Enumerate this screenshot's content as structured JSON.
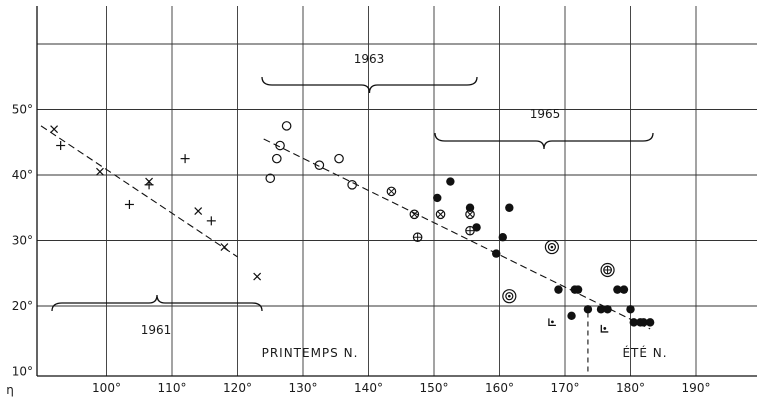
{
  "chart_data": {
    "type": "scatter",
    "title": "",
    "xlabel": "η",
    "ylabel": "",
    "xlim": [
      90,
      195
    ],
    "ylim": [
      10,
      55
    ],
    "grid": true,
    "x_ticks": [
      "100°",
      "110°",
      "120°",
      "130°",
      "140°",
      "150°",
      "160°",
      "170°",
      "180°",
      "190°"
    ],
    "y_ticks": [
      "10°",
      "20°",
      "30°",
      "40°",
      "50°"
    ],
    "annotations": {
      "year_1961": "1961",
      "year_1963": "1963",
      "year_1965": "1965",
      "season_spring": "PRINTEMPS N.",
      "season_summer": "ÉTÉ N."
    },
    "trend_lines": [
      {
        "group": "1961",
        "x": [
          90,
          120
        ],
        "y": [
          47.5,
          27.5
        ]
      },
      {
        "group": "1963_1965",
        "x": [
          124,
          183
        ],
        "y": [
          45.5,
          16.5
        ]
      }
    ],
    "season_divider_x": 173.5,
    "series": [
      {
        "marker": "x",
        "points": [
          [
            92,
            47
          ],
          [
            99,
            40.5
          ],
          [
            106.5,
            39
          ],
          [
            114,
            34.5
          ],
          [
            118,
            29
          ],
          [
            123,
            24.5
          ]
        ]
      },
      {
        "marker": "plus",
        "points": [
          [
            93,
            44.5
          ],
          [
            103.5,
            35.5
          ],
          [
            106.5,
            38.5
          ],
          [
            112,
            42.5
          ],
          [
            116,
            33
          ]
        ]
      },
      {
        "marker": "open-circle",
        "points": [
          [
            125,
            39.5
          ],
          [
            126,
            42.5
          ],
          [
            126.5,
            44.5
          ],
          [
            127.5,
            47.5
          ],
          [
            132.5,
            41.5
          ],
          [
            135.5,
            42.5
          ],
          [
            137.5,
            38.5
          ]
        ]
      },
      {
        "marker": "circle-x",
        "points": [
          [
            143.5,
            37.5
          ],
          [
            147,
            34
          ],
          [
            151,
            34
          ],
          [
            155.5,
            34
          ]
        ]
      },
      {
        "marker": "circle-plus",
        "points": [
          [
            147.5,
            30.5
          ],
          [
            155.5,
            31.5
          ]
        ]
      },
      {
        "marker": "filled-circle",
        "points": [
          [
            150.5,
            36.5
          ],
          [
            152.5,
            39
          ],
          [
            155.5,
            35
          ],
          [
            156.5,
            32
          ],
          [
            159.5,
            28
          ],
          [
            160.5,
            30.5
          ],
          [
            161.5,
            35
          ],
          [
            169,
            22.5
          ],
          [
            171,
            18.5
          ],
          [
            171.5,
            22.5
          ],
          [
            172,
            22.5
          ],
          [
            173.5,
            19.5
          ],
          [
            175.5,
            19.5
          ],
          [
            176.5,
            19.5
          ],
          [
            178,
            22.5
          ],
          [
            179,
            22.5
          ],
          [
            180,
            19.5
          ],
          [
            180.5,
            17.5
          ],
          [
            181.5,
            17.5
          ],
          [
            182,
            17.5
          ],
          [
            183,
            17.5
          ]
        ]
      },
      {
        "marker": "double-circle",
        "points": [
          [
            161.5,
            21.5
          ],
          [
            168,
            29
          ]
        ]
      },
      {
        "marker": "double-circle-plus",
        "points": [
          [
            176.5,
            25.5
          ]
        ]
      },
      {
        "marker": "corner-mark",
        "points": [
          [
            168,
            17.5
          ],
          [
            176,
            16.5
          ]
        ]
      }
    ]
  }
}
